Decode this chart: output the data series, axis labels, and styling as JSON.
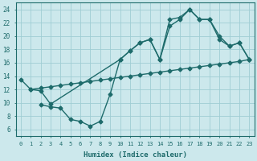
{
  "line1_x": [
    0,
    1,
    2,
    3,
    10,
    11,
    12,
    13,
    14,
    15,
    16,
    17,
    18,
    19,
    20,
    21,
    22,
    23
  ],
  "line1_y": [
    13.5,
    12.0,
    11.8,
    9.8,
    16.5,
    17.8,
    19.0,
    19.5,
    16.5,
    21.5,
    22.5,
    24.0,
    22.5,
    22.5,
    20.0,
    18.5,
    19.0,
    16.5
  ],
  "line2_x": [
    1,
    2,
    3,
    4,
    5,
    6,
    7,
    8,
    9,
    10,
    11,
    12,
    13,
    14,
    15,
    16,
    17,
    18,
    19,
    20,
    21,
    22,
    23
  ],
  "line2_y": [
    12.0,
    12.2,
    12.4,
    12.6,
    12.8,
    13.0,
    13.2,
    13.4,
    13.6,
    13.8,
    14.0,
    14.2,
    14.4,
    14.6,
    14.8,
    15.0,
    15.2,
    15.4,
    15.6,
    15.8,
    16.0,
    16.2,
    16.5
  ],
  "line3_x": [
    2,
    3,
    4,
    5,
    6,
    7,
    8,
    9,
    10,
    11,
    12,
    13,
    14,
    15,
    16,
    17,
    18,
    19,
    20,
    21,
    22,
    23
  ],
  "line3_y": [
    9.7,
    9.4,
    9.2,
    7.5,
    7.2,
    6.5,
    7.2,
    11.3,
    16.5,
    17.8,
    19.0,
    19.5,
    16.5,
    22.5,
    22.8,
    24.0,
    22.5,
    22.5,
    19.5,
    18.5,
    19.0,
    16.5
  ],
  "bg_color": "#cce8ec",
  "grid_color": "#9fcdd4",
  "line_color": "#1e6b6b",
  "xlabel": "Humidex (Indice chaleur)",
  "xlim": [
    -0.5,
    23.5
  ],
  "ylim": [
    5.0,
    25.0
  ],
  "yticks": [
    6,
    8,
    10,
    12,
    14,
    16,
    18,
    20,
    22,
    24
  ],
  "xticks": [
    0,
    1,
    2,
    3,
    4,
    5,
    6,
    7,
    8,
    9,
    10,
    11,
    12,
    13,
    14,
    15,
    16,
    17,
    18,
    19,
    20,
    21,
    22,
    23
  ]
}
